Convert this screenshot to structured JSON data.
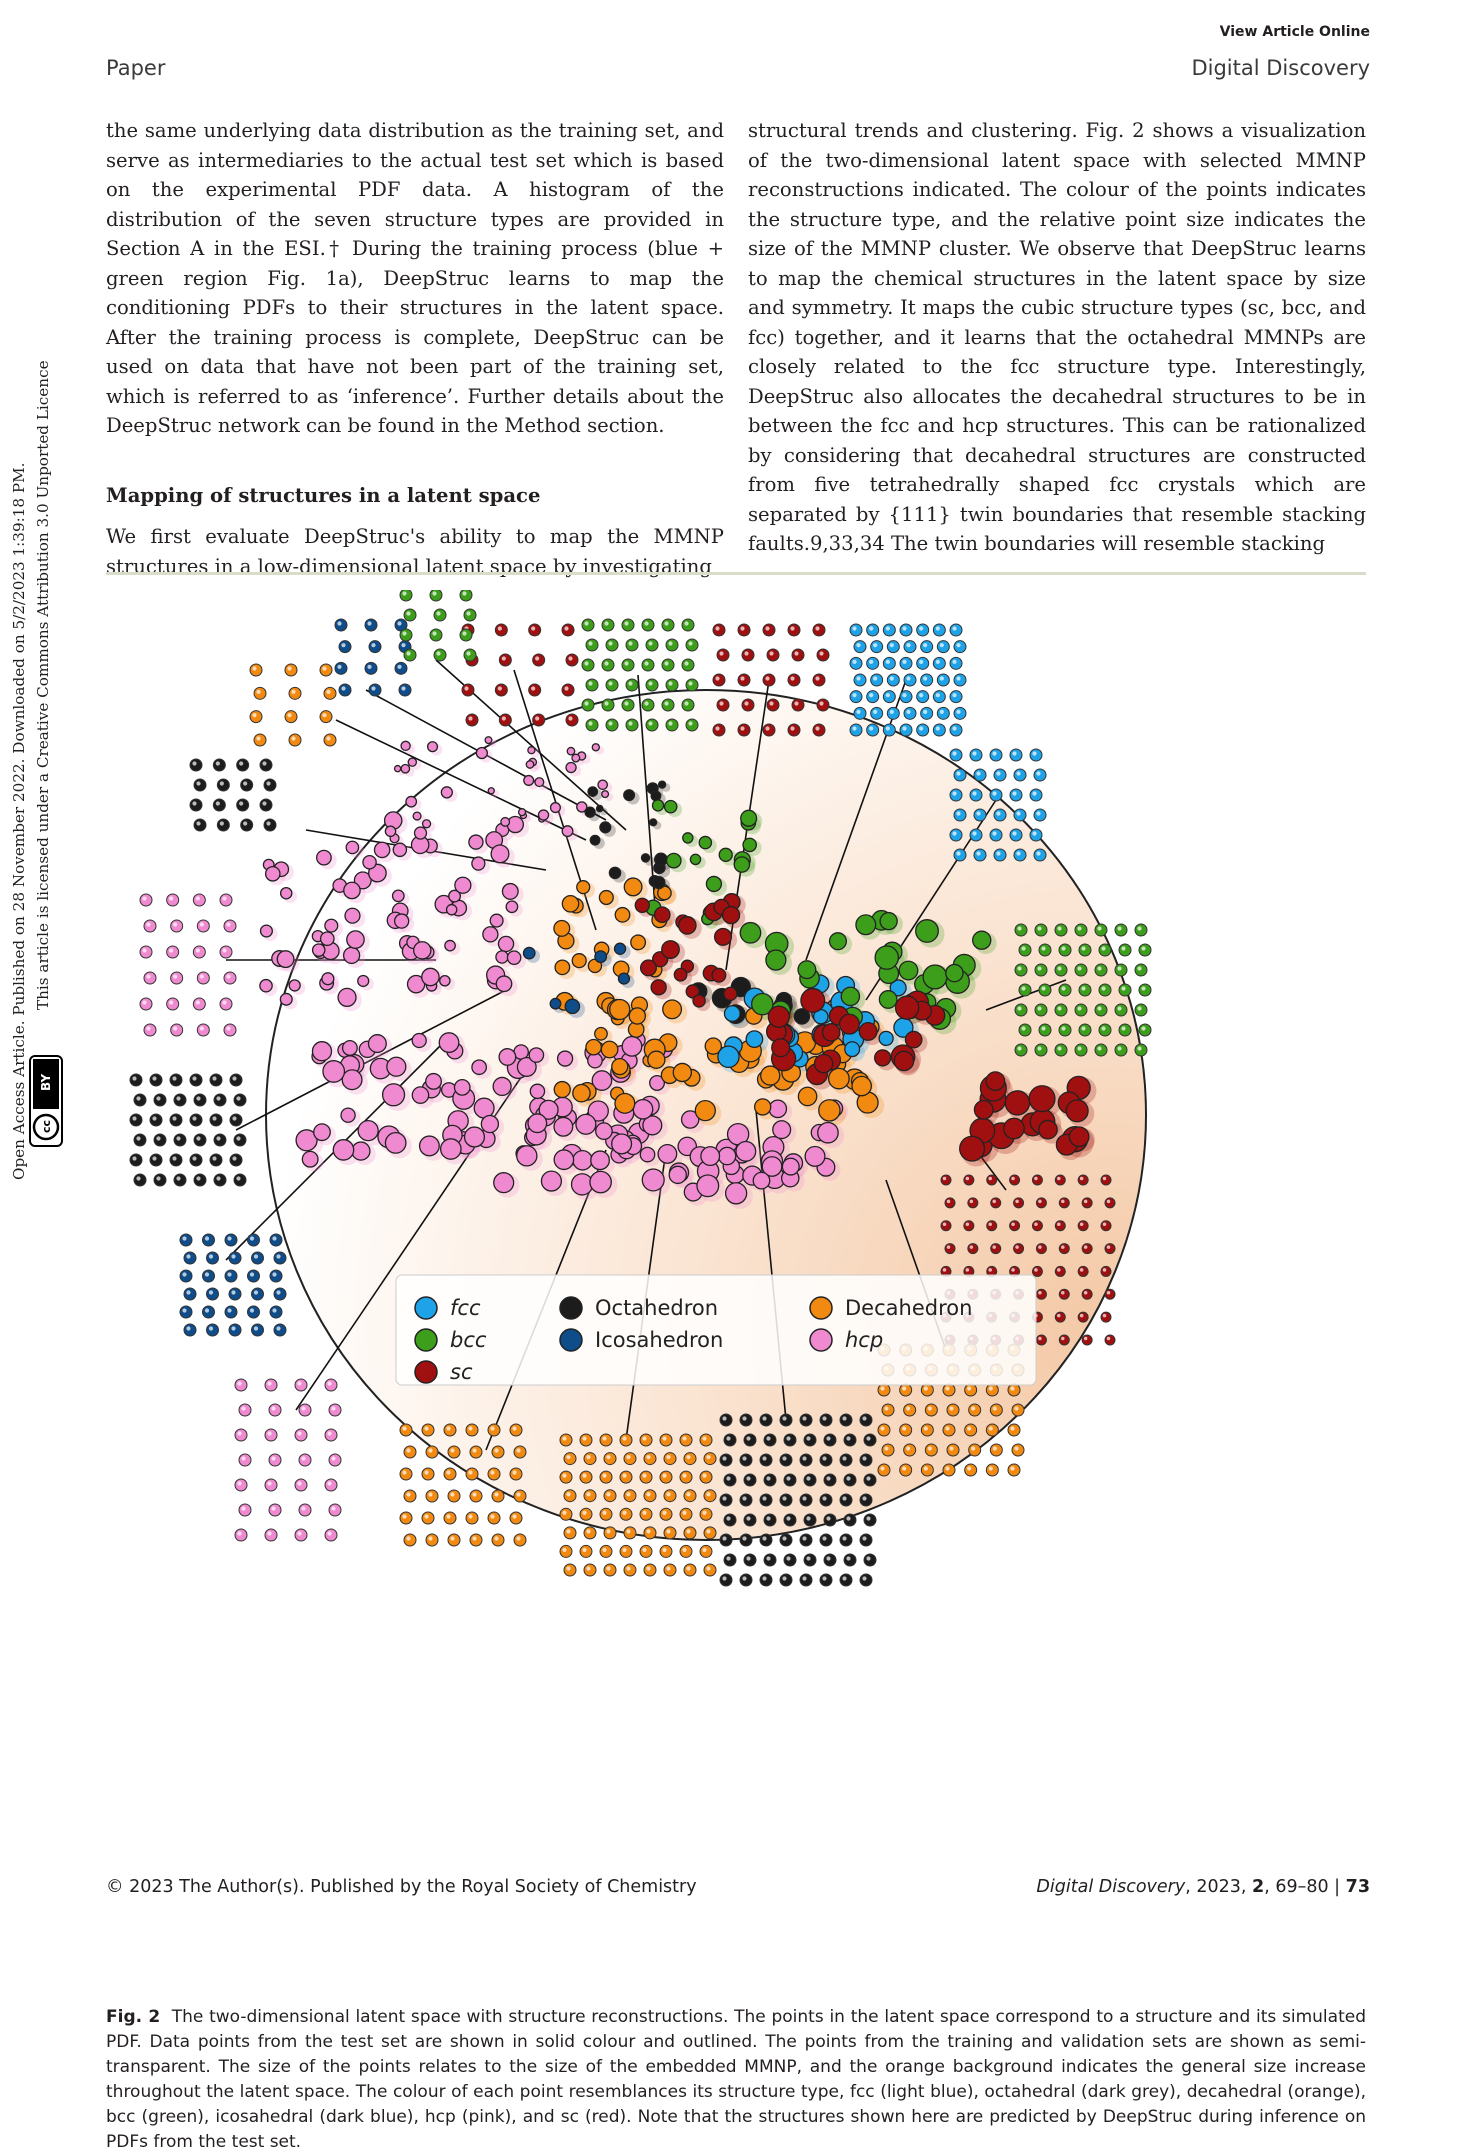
{
  "header": {
    "view_online": "View Article Online",
    "section_left": "Paper",
    "section_right": "Digital Discovery"
  },
  "sidebar": {
    "line1": "Open Access Article. Published on 28 November 2022. Downloaded on 5/2/2023 1:39:18 PM.",
    "line2": "This article is licensed under a Creative Commons Attribution 3.0 Unported Licence.",
    "badge_cc": "cc",
    "badge_by": "BY"
  },
  "body": {
    "left_para1": "the same underlying data distribution as the training set, and serve as intermediaries to the actual test set which is based on the experimental PDF data. A histogram of the distribution of the seven structure types are provided in Section A in the ESI.† During the training process (blue + green region Fig. 1a), DeepStruc learns to map the conditioning PDFs to their structures in the latent space. After the training process is complete, DeepStruc can be used on data that have not been part of the training set, which is referred to as ‘inference’. Further details about the DeepStruc network can be found in the Method section.",
    "left_heading": "Mapping of structures in a latent space",
    "left_para2": "We first evaluate DeepStruc's ability to map the MMNP structures in a low-dimensional latent space by investigating",
    "right_para": "structural trends and clustering. Fig. 2 shows a visualization of the two-dimensional latent space with selected MMNP reconstructions indicated. The colour of the points indicates the structure type, and the relative point size indicates the size of the MMNP cluster. We observe that DeepStruc learns to map the chemical structures in the latent space by size and symmetry. It maps the cubic structure types (sc, bcc, and fcc) together, and it learns that the octahedral MMNPs are closely related to the fcc structure type. Interestingly, DeepStruc also allocates the decahedral structures to be in between the fcc and hcp structures. This can be rationalized by considering that decahedral structures are constructed from five tetrahedrally shaped fcc crystals which are separated by {111} twin boundaries that resemble stacking faults.9,33,34 The twin boundaries will resemble stacking"
  },
  "figure": {
    "legend": [
      {
        "label": "fcc",
        "color": "#1fa3e8",
        "italic": true
      },
      {
        "label": "bcc",
        "color": "#3c9e1a",
        "italic": true
      },
      {
        "label": "sc",
        "color": "#a01010",
        "italic": true
      },
      {
        "label": "Octahedron",
        "color": "#1c1c1c",
        "italic": false
      },
      {
        "label": "Icosahedron",
        "color": "#0e4d8a",
        "italic": false
      },
      {
        "label": "Decahedron",
        "color": "#f28a12",
        "italic": false
      },
      {
        "label": "hcp",
        "color": "#f08ad0",
        "italic": true
      }
    ]
  },
  "caption": {
    "label": "Fig. 2",
    "text": "The two-dimensional latent space with structure reconstructions. The points in the latent space correspond to a structure and its simulated PDF. Data points from the test set are shown in solid colour and outlined. The points from the training and validation sets are shown as semi-transparent. The size of the points relates to the size of the embedded MMNP, and the orange background indicates the general size increase throughout the latent space. The colour of each point resemblances its structure type, fcc (light blue), octahedral (dark grey), decahedral (orange), bcc (green), icosahedral (dark blue), hcp (pink), and sc (red). Note that the structures shown here are predicted by DeepStruc during inference on PDFs from the test set."
  },
  "footer": {
    "left": "© 2023 The Author(s). Published by the Royal Society of Chemistry",
    "journal": "Digital Discovery",
    "year_vol": ", 2023, ",
    "volume": "2",
    "pages": ", 69–80",
    "sep": " | ",
    "page": "73"
  }
}
